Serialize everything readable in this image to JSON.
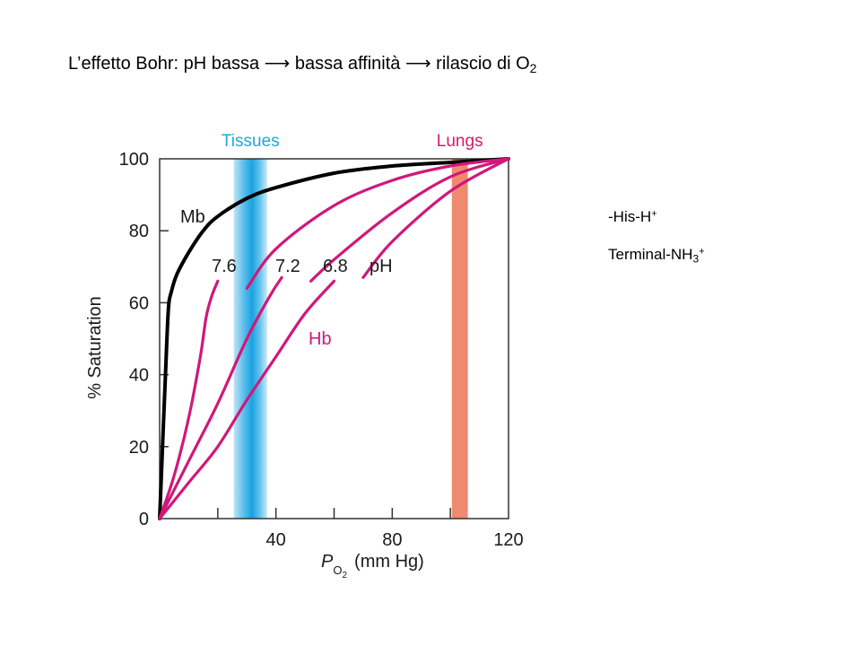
{
  "slide": {
    "title_prefix": "L’effetto Bohr: pH bassa ⟶ bassa affinità ⟶ rilascio di O",
    "title_subscript": "2",
    "side_notes": [
      {
        "text": "-His-H",
        "sup": "+",
        "sub": ""
      },
      {
        "text": "Terminal-NH",
        "sub": "3",
        "sup": "+"
      }
    ]
  },
  "chart_data": {
    "type": "line",
    "title": "",
    "xlabel": "P_O2 (mm Hg)",
    "xlabel_main": "P",
    "xlabel_sub": "O2",
    "xlabel_suffix": "(mm Hg)",
    "ylabel": "% Saturation",
    "xlim": [
      0,
      120
    ],
    "ylim": [
      0,
      100
    ],
    "x_ticks": [
      0,
      20,
      40,
      60,
      80,
      100,
      120
    ],
    "x_tick_labels": [
      "",
      "",
      "40",
      "",
      "80",
      "",
      "120"
    ],
    "y_ticks": [
      0,
      20,
      40,
      60,
      80,
      100
    ],
    "y_tick_labels": [
      "0",
      "20",
      "40",
      "60",
      "80",
      "100"
    ],
    "grid": false,
    "bands": [
      {
        "label": "Tissues",
        "x_start": 25.5,
        "x_end": 37,
        "color": "#29abe2"
      },
      {
        "label": "Lungs",
        "x_start": 100.5,
        "x_end": 106,
        "color": "#ef8a6f"
      }
    ],
    "annotations": [
      "Mb",
      "7.6",
      "7.2",
      "6.8",
      "pH",
      "Hb"
    ],
    "series": [
      {
        "name": "Mb",
        "color": "#000000",
        "x": [
          0,
          1,
          2,
          3,
          4,
          6,
          10,
          15,
          20,
          30,
          40,
          60,
          80,
          100,
          120
        ],
        "y": [
          0,
          20,
          40,
          58,
          63,
          68,
          74,
          80,
          84,
          89,
          92,
          96,
          98,
          99,
          100
        ]
      },
      {
        "name": "Hb pH 7.6",
        "color": "#d0187a",
        "x": [
          0,
          5,
          10,
          14,
          16,
          18,
          20,
          30,
          40,
          60,
          80,
          100,
          120
        ],
        "y": [
          0,
          12,
          28,
          45,
          56,
          62,
          66,
          64,
          75,
          87,
          94,
          98,
          100
        ]
      },
      {
        "name": "Hb pH 7.2",
        "color": "#d0187a",
        "x": [
          0,
          10,
          20,
          30,
          38,
          42,
          52,
          60,
          80,
          100,
          120
        ],
        "y": [
          0,
          16,
          32,
          50,
          62,
          67,
          66,
          72,
          85,
          95,
          100
        ]
      },
      {
        "name": "Hb pH 6.8",
        "color": "#d0187a",
        "x": [
          0,
          10,
          20,
          30,
          40,
          50,
          60,
          70,
          80,
          100,
          120
        ],
        "y": [
          0,
          10,
          20,
          33,
          45,
          57,
          66,
          67,
          77,
          91,
          100
        ]
      }
    ]
  }
}
